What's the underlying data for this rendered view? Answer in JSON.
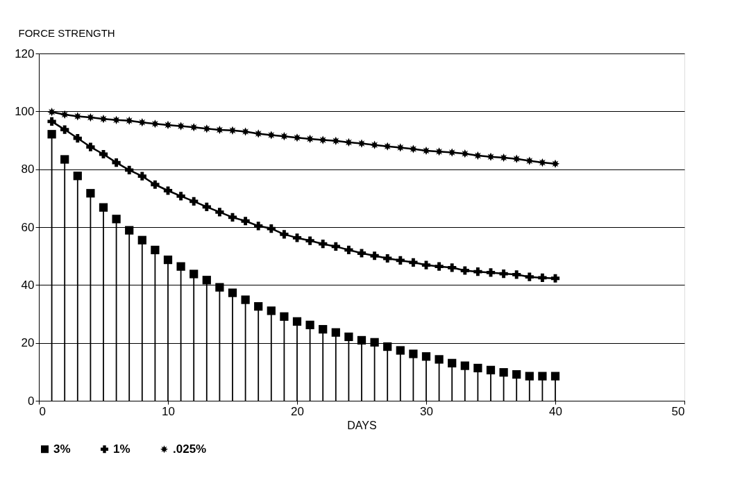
{
  "chart_data": {
    "type": "line",
    "xlabel": "DAYS",
    "ylabel": "FORCE STRENGTH",
    "x": [
      1,
      2,
      3,
      4,
      5,
      6,
      7,
      8,
      9,
      10,
      11,
      12,
      13,
      14,
      15,
      16,
      17,
      18,
      19,
      20,
      21,
      22,
      23,
      24,
      25,
      26,
      27,
      28,
      29,
      30,
      31,
      32,
      33,
      34,
      35,
      36,
      37,
      38,
      39,
      40
    ],
    "series": [
      {
        "name": "3%",
        "type": "lollipop",
        "marker": "square",
        "color": "#000000",
        "values": [
          92.1,
          83.4,
          77.7,
          71.7,
          66.8,
          62.8,
          58.9,
          55.5,
          52.1,
          48.7,
          46.4,
          43.8,
          41.7,
          39.2,
          37.3,
          34.9,
          32.6,
          31.1,
          29.1,
          27.4,
          26.2,
          24.7,
          23.6,
          22.1,
          20.9,
          20.2,
          18.7,
          17.4,
          16.2,
          15.3,
          14.3,
          13.0,
          12.1,
          11.3,
          10.6,
          9.8,
          9.1,
          8.5,
          8.5,
          8.5
        ]
      },
      {
        "name": "1%",
        "marker": "cross",
        "color": "#000000",
        "values": [
          96.5,
          93.7,
          90.7,
          87.7,
          85.2,
          82.3,
          79.7,
          77.6,
          74.7,
          72.6,
          70.7,
          68.9,
          67.0,
          65.2,
          63.4,
          62.1,
          60.4,
          59.5,
          57.5,
          56.3,
          55.3,
          54.2,
          53.3,
          52.1,
          51.0,
          50.1,
          49.2,
          48.5,
          47.8,
          46.9,
          46.4,
          46.0,
          45.0,
          44.6,
          44.3,
          43.9,
          43.6,
          42.8,
          42.5,
          42.3
        ]
      },
      {
        "name": ".025%",
        "marker": "star",
        "color": "#000000",
        "values": [
          99.8,
          98.9,
          98.3,
          97.9,
          97.4,
          97.0,
          96.8,
          96.2,
          95.7,
          95.3,
          94.9,
          94.5,
          94.0,
          93.6,
          93.4,
          93.0,
          92.3,
          91.8,
          91.4,
          90.9,
          90.5,
          90.1,
          89.8,
          89.3,
          88.9,
          88.4,
          87.9,
          87.5,
          87.0,
          86.4,
          86.1,
          85.8,
          85.4,
          84.7,
          84.3,
          84.0,
          83.6,
          82.9,
          82.3,
          81.9
        ]
      }
    ],
    "xlim": [
      0,
      50
    ],
    "xticks": [
      0,
      10,
      20,
      30,
      40,
      50
    ],
    "ylim": [
      0,
      120
    ],
    "yticks": [
      0,
      20,
      40,
      60,
      80,
      100,
      120
    ],
    "grid": "y",
    "legend": "bottom"
  }
}
